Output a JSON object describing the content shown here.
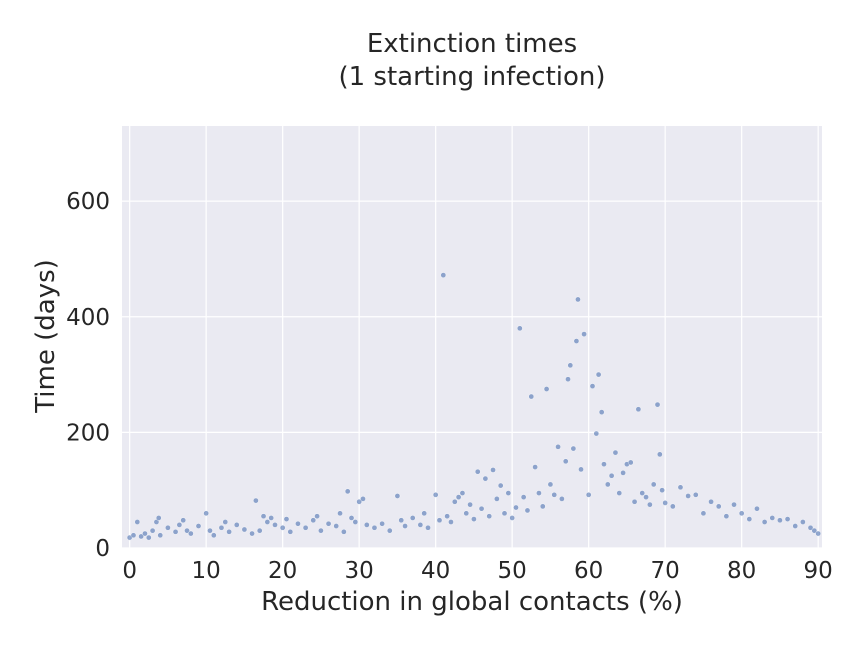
{
  "chart_data": {
    "type": "scatter",
    "title": "Extinction times",
    "subtitle": "(1 starting infection)",
    "xlabel": "Reduction in global contacts (%)",
    "ylabel": "Time (days)",
    "xlim": [
      -1,
      90.5
    ],
    "ylim": [
      0,
      730
    ],
    "xticks": [
      0,
      10,
      20,
      30,
      40,
      50,
      60,
      70,
      80,
      90
    ],
    "yticks": [
      0,
      200,
      400,
      600
    ],
    "grid": true,
    "background_color": "#eaeaf2",
    "grid_color": "#ffffff",
    "marker_color": "#4c72b0",
    "series": [
      {
        "points": [
          [
            0,
            18
          ],
          [
            0.5,
            22
          ],
          [
            1,
            45
          ],
          [
            1.5,
            20
          ],
          [
            2,
            25
          ],
          [
            2.5,
            18
          ],
          [
            3,
            30
          ],
          [
            3.5,
            45
          ],
          [
            3.8,
            52
          ],
          [
            4,
            22
          ],
          [
            5,
            35
          ],
          [
            6,
            28
          ],
          [
            6.5,
            40
          ],
          [
            7,
            48
          ],
          [
            7.5,
            30
          ],
          [
            8,
            25
          ],
          [
            9,
            38
          ],
          [
            10,
            60
          ],
          [
            10.5,
            30
          ],
          [
            11,
            22
          ],
          [
            12,
            35
          ],
          [
            12.5,
            45
          ],
          [
            13,
            28
          ],
          [
            14,
            40
          ],
          [
            15,
            32
          ],
          [
            16,
            25
          ],
          [
            16.5,
            82
          ],
          [
            17,
            30
          ],
          [
            17.5,
            55
          ],
          [
            18,
            45
          ],
          [
            18.5,
            52
          ],
          [
            19,
            40
          ],
          [
            20,
            35
          ],
          [
            20.5,
            50
          ],
          [
            21,
            28
          ],
          [
            22,
            42
          ],
          [
            23,
            35
          ],
          [
            24,
            48
          ],
          [
            24.5,
            55
          ],
          [
            25,
            30
          ],
          [
            26,
            42
          ],
          [
            27,
            38
          ],
          [
            27.5,
            60
          ],
          [
            28,
            28
          ],
          [
            28.5,
            98
          ],
          [
            29,
            52
          ],
          [
            29.5,
            45
          ],
          [
            30,
            80
          ],
          [
            30.5,
            85
          ],
          [
            31,
            40
          ],
          [
            32,
            35
          ],
          [
            33,
            42
          ],
          [
            34,
            30
          ],
          [
            35,
            90
          ],
          [
            35.5,
            48
          ],
          [
            36,
            38
          ],
          [
            37,
            52
          ],
          [
            38,
            40
          ],
          [
            38.5,
            60
          ],
          [
            39,
            35
          ],
          [
            40,
            92
          ],
          [
            40.5,
            48
          ],
          [
            41,
            472
          ],
          [
            41.5,
            55
          ],
          [
            42,
            45
          ],
          [
            42.5,
            80
          ],
          [
            43,
            88
          ],
          [
            43.5,
            95
          ],
          [
            44,
            60
          ],
          [
            44.5,
            75
          ],
          [
            45,
            50
          ],
          [
            45.5,
            132
          ],
          [
            46,
            68
          ],
          [
            46.5,
            120
          ],
          [
            47,
            55
          ],
          [
            47.5,
            135
          ],
          [
            48,
            85
          ],
          [
            48.5,
            108
          ],
          [
            49,
            60
          ],
          [
            49.5,
            95
          ],
          [
            50,
            52
          ],
          [
            50.5,
            70
          ],
          [
            51,
            380
          ],
          [
            51.5,
            88
          ],
          [
            52,
            65
          ],
          [
            52.5,
            262
          ],
          [
            53,
            140
          ],
          [
            53.5,
            95
          ],
          [
            54,
            72
          ],
          [
            54.5,
            275
          ],
          [
            55,
            110
          ],
          [
            55.5,
            92
          ],
          [
            56,
            175
          ],
          [
            56.5,
            85
          ],
          [
            57,
            150
          ],
          [
            57.3,
            292
          ],
          [
            57.6,
            316
          ],
          [
            58,
            172
          ],
          [
            58.4,
            358
          ],
          [
            58.6,
            430
          ],
          [
            59,
            136
          ],
          [
            59.4,
            370
          ],
          [
            60,
            92
          ],
          [
            60.5,
            280
          ],
          [
            61,
            198
          ],
          [
            61.3,
            300
          ],
          [
            61.7,
            235
          ],
          [
            62,
            145
          ],
          [
            62.5,
            110
          ],
          [
            63,
            125
          ],
          [
            63.5,
            165
          ],
          [
            64,
            95
          ],
          [
            64.5,
            130
          ],
          [
            65,
            145
          ],
          [
            65.5,
            148
          ],
          [
            66,
            80
          ],
          [
            66.5,
            240
          ],
          [
            67,
            95
          ],
          [
            67.5,
            88
          ],
          [
            68,
            75
          ],
          [
            68.5,
            110
          ],
          [
            69,
            248
          ],
          [
            69.3,
            162
          ],
          [
            69.6,
            100
          ],
          [
            70,
            78
          ],
          [
            71,
            72
          ],
          [
            72,
            105
          ],
          [
            73,
            90
          ],
          [
            74,
            92
          ],
          [
            75,
            60
          ],
          [
            76,
            80
          ],
          [
            77,
            72
          ],
          [
            78,
            55
          ],
          [
            79,
            75
          ],
          [
            80,
            60
          ],
          [
            81,
            50
          ],
          [
            82,
            68
          ],
          [
            83,
            45
          ],
          [
            84,
            52
          ],
          [
            85,
            48
          ],
          [
            86,
            50
          ],
          [
            87,
            38
          ],
          [
            88,
            45
          ],
          [
            89,
            35
          ],
          [
            89.5,
            30
          ],
          [
            90,
            25
          ]
        ]
      }
    ]
  }
}
